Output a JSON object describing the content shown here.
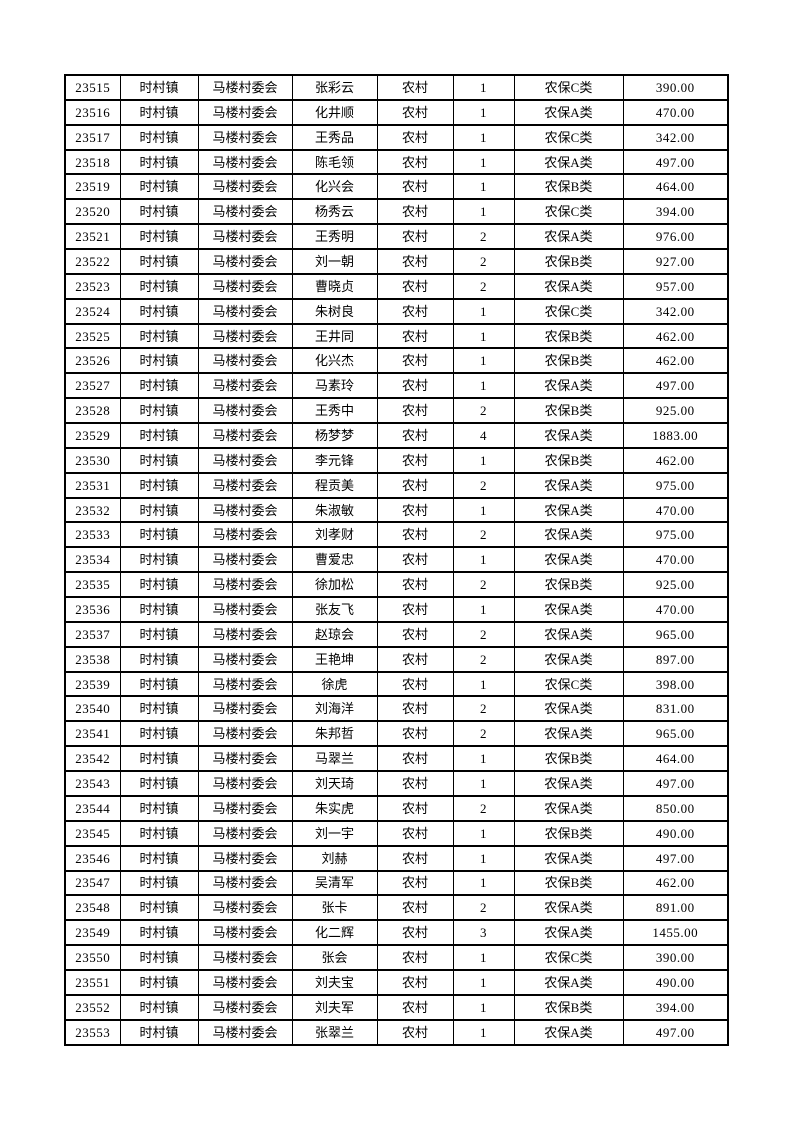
{
  "page": {
    "background_color": "#ffffff",
    "border_color": "#000000",
    "text_color": "#000000"
  },
  "table": {
    "description": "rural-insurance-roster-continuation-page-no-header",
    "fields": [
      "id",
      "town",
      "village",
      "name",
      "residence",
      "count",
      "category",
      "amount"
    ],
    "rows": [
      [
        "23515",
        "时村镇",
        "马楼村委会",
        "张彩云",
        "农村",
        "1",
        "农保C类",
        "390.00"
      ],
      [
        "23516",
        "时村镇",
        "马楼村委会",
        "化井顺",
        "农村",
        "1",
        "农保A类",
        "470.00"
      ],
      [
        "23517",
        "时村镇",
        "马楼村委会",
        "王秀品",
        "农村",
        "1",
        "农保C类",
        "342.00"
      ],
      [
        "23518",
        "时村镇",
        "马楼村委会",
        "陈毛领",
        "农村",
        "1",
        "农保A类",
        "497.00"
      ],
      [
        "23519",
        "时村镇",
        "马楼村委会",
        "化兴会",
        "农村",
        "1",
        "农保B类",
        "464.00"
      ],
      [
        "23520",
        "时村镇",
        "马楼村委会",
        "杨秀云",
        "农村",
        "1",
        "农保C类",
        "394.00"
      ],
      [
        "23521",
        "时村镇",
        "马楼村委会",
        "王秀明",
        "农村",
        "2",
        "农保A类",
        "976.00"
      ],
      [
        "23522",
        "时村镇",
        "马楼村委会",
        "刘一朝",
        "农村",
        "2",
        "农保B类",
        "927.00"
      ],
      [
        "23523",
        "时村镇",
        "马楼村委会",
        "曹晓贞",
        "农村",
        "2",
        "农保A类",
        "957.00"
      ],
      [
        "23524",
        "时村镇",
        "马楼村委会",
        "朱树良",
        "农村",
        "1",
        "农保C类",
        "342.00"
      ],
      [
        "23525",
        "时村镇",
        "马楼村委会",
        "王井同",
        "农村",
        "1",
        "农保B类",
        "462.00"
      ],
      [
        "23526",
        "时村镇",
        "马楼村委会",
        "化兴杰",
        "农村",
        "1",
        "农保B类",
        "462.00"
      ],
      [
        "23527",
        "时村镇",
        "马楼村委会",
        "马素玲",
        "农村",
        "1",
        "农保A类",
        "497.00"
      ],
      [
        "23528",
        "时村镇",
        "马楼村委会",
        "王秀中",
        "农村",
        "2",
        "农保B类",
        "925.00"
      ],
      [
        "23529",
        "时村镇",
        "马楼村委会",
        "杨梦梦",
        "农村",
        "4",
        "农保A类",
        "1883.00"
      ],
      [
        "23530",
        "时村镇",
        "马楼村委会",
        "李元锋",
        "农村",
        "1",
        "农保B类",
        "462.00"
      ],
      [
        "23531",
        "时村镇",
        "马楼村委会",
        "程贡美",
        "农村",
        "2",
        "农保A类",
        "975.00"
      ],
      [
        "23532",
        "时村镇",
        "马楼村委会",
        "朱淑敏",
        "农村",
        "1",
        "农保A类",
        "470.00"
      ],
      [
        "23533",
        "时村镇",
        "马楼村委会",
        "刘孝财",
        "农村",
        "2",
        "农保A类",
        "975.00"
      ],
      [
        "23534",
        "时村镇",
        "马楼村委会",
        "曹爱忠",
        "农村",
        "1",
        "农保A类",
        "470.00"
      ],
      [
        "23535",
        "时村镇",
        "马楼村委会",
        "徐加松",
        "农村",
        "2",
        "农保B类",
        "925.00"
      ],
      [
        "23536",
        "时村镇",
        "马楼村委会",
        "张友飞",
        "农村",
        "1",
        "农保A类",
        "470.00"
      ],
      [
        "23537",
        "时村镇",
        "马楼村委会",
        "赵琼会",
        "农村",
        "2",
        "农保A类",
        "965.00"
      ],
      [
        "23538",
        "时村镇",
        "马楼村委会",
        "王艳坤",
        "农村",
        "2",
        "农保A类",
        "897.00"
      ],
      [
        "23539",
        "时村镇",
        "马楼村委会",
        "徐虎",
        "农村",
        "1",
        "农保C类",
        "398.00"
      ],
      [
        "23540",
        "时村镇",
        "马楼村委会",
        "刘海洋",
        "农村",
        "2",
        "农保A类",
        "831.00"
      ],
      [
        "23541",
        "时村镇",
        "马楼村委会",
        "朱邦哲",
        "农村",
        "2",
        "农保A类",
        "965.00"
      ],
      [
        "23542",
        "时村镇",
        "马楼村委会",
        "马翠兰",
        "农村",
        "1",
        "农保B类",
        "464.00"
      ],
      [
        "23543",
        "时村镇",
        "马楼村委会",
        "刘天琦",
        "农村",
        "1",
        "农保A类",
        "497.00"
      ],
      [
        "23544",
        "时村镇",
        "马楼村委会",
        "朱实虎",
        "农村",
        "2",
        "农保A类",
        "850.00"
      ],
      [
        "23545",
        "时村镇",
        "马楼村委会",
        "刘一宇",
        "农村",
        "1",
        "农保B类",
        "490.00"
      ],
      [
        "23546",
        "时村镇",
        "马楼村委会",
        "刘赫",
        "农村",
        "1",
        "农保A类",
        "497.00"
      ],
      [
        "23547",
        "时村镇",
        "马楼村委会",
        "吴清军",
        "农村",
        "1",
        "农保B类",
        "462.00"
      ],
      [
        "23548",
        "时村镇",
        "马楼村委会",
        "张卡",
        "农村",
        "2",
        "农保A类",
        "891.00"
      ],
      [
        "23549",
        "时村镇",
        "马楼村委会",
        "化二辉",
        "农村",
        "3",
        "农保A类",
        "1455.00"
      ],
      [
        "23550",
        "时村镇",
        "马楼村委会",
        "张会",
        "农村",
        "1",
        "农保C类",
        "390.00"
      ],
      [
        "23551",
        "时村镇",
        "马楼村委会",
        "刘夫宝",
        "农村",
        "1",
        "农保A类",
        "490.00"
      ],
      [
        "23552",
        "时村镇",
        "马楼村委会",
        "刘夫军",
        "农村",
        "1",
        "农保B类",
        "394.00"
      ],
      [
        "23553",
        "时村镇",
        "马楼村委会",
        "张翠兰",
        "农村",
        "1",
        "农保A类",
        "497.00"
      ]
    ]
  }
}
